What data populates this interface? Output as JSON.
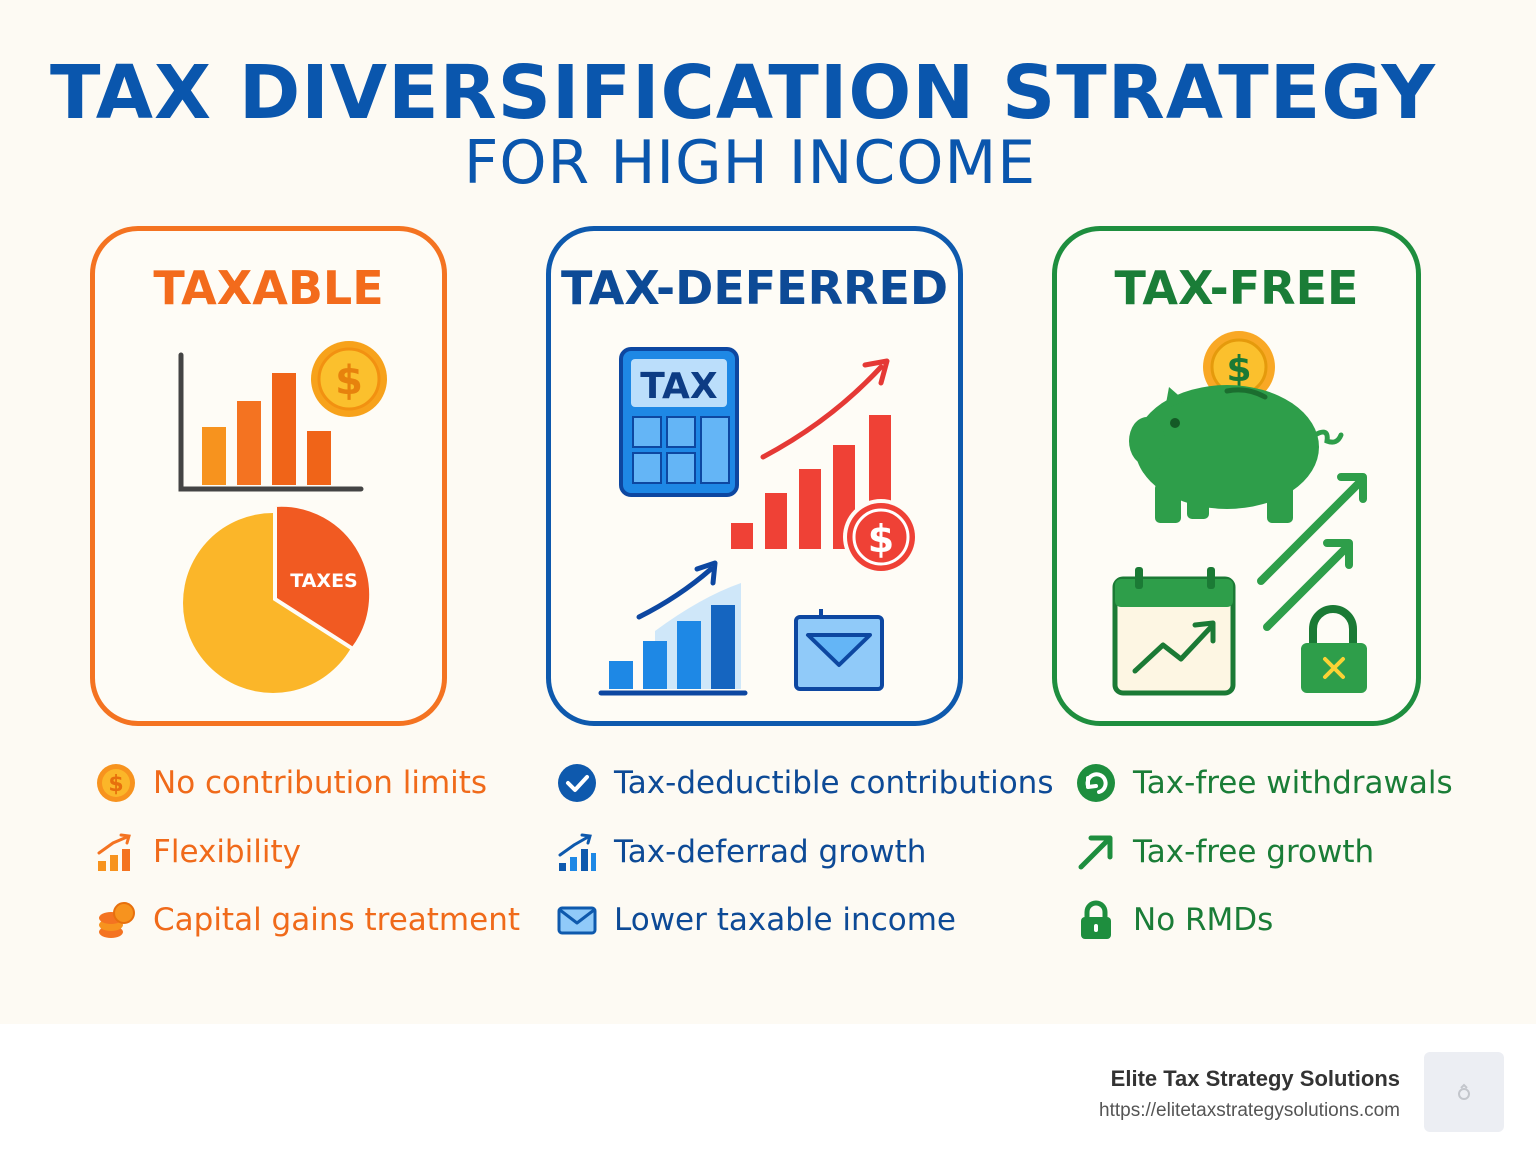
{
  "title": "TAX DIVERSIFICATION STRATEGY",
  "subtitle": "FOR HIGH INCOME",
  "colors": {
    "taxable": "#f47321",
    "tax_deferred": "#0e59ad",
    "tax_free": "#1e8e3e"
  },
  "cards": [
    {
      "title": "TAXABLE",
      "illustration": [
        "bar-chart-icon",
        "dollar-coin-icon",
        "pie-chart-icon"
      ],
      "pie_label": "TAXES"
    },
    {
      "title": "TAX-DEFERRED",
      "illustration": [
        "tax-calculator-icon",
        "growth-arrow-icon",
        "bar-chart-icon",
        "dollar-coin-icon",
        "envelope-icon"
      ],
      "calculator_label": "TAX"
    },
    {
      "title": "TAX-FREE",
      "illustration": [
        "piggy-bank-icon",
        "dollar-coin-icon",
        "calendar-chart-icon",
        "growth-arrow-icon",
        "padlock-icon"
      ]
    }
  ],
  "benefits": {
    "taxable": [
      {
        "icon": "dollar-coin-icon",
        "label": "No contribution limits"
      },
      {
        "icon": "growth-chart-icon",
        "label": "Flexibility"
      },
      {
        "icon": "coin-stack-icon",
        "label": "Capital gains treatment"
      }
    ],
    "tax_deferred": [
      {
        "icon": "check-circle-icon",
        "label": "Tax-deductible contributions"
      },
      {
        "icon": "growth-chart-icon",
        "label": "Tax-deferrad growth"
      },
      {
        "icon": "envelope-icon",
        "label": "Lower taxable income"
      }
    ],
    "tax_free": [
      {
        "icon": "refresh-icon",
        "label": "Tax-free withdrawals"
      },
      {
        "icon": "arrow-up-right-icon",
        "label": "Tax-free growth"
      },
      {
        "icon": "padlock-icon",
        "label": "No RMDs"
      }
    ]
  },
  "footer": {
    "company": "Elite Tax Strategy Solutions",
    "url": "https://elitetaxstrategysolutions.com"
  }
}
